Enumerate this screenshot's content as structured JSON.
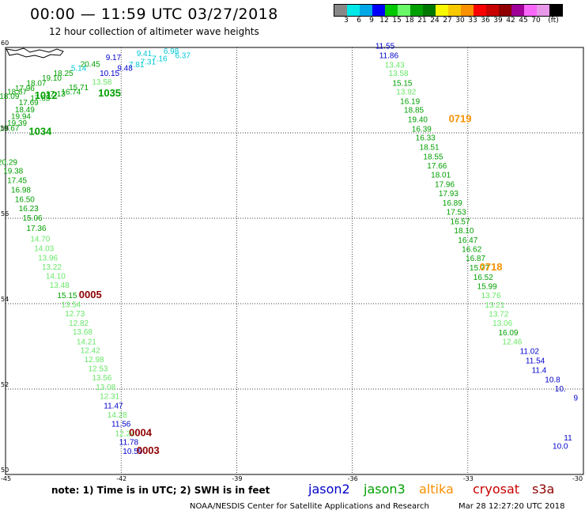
{
  "header": {
    "title": "00:00 — 11:59 UTC 03/27/2018",
    "subtitle": "12 hour collection of altimeter wave heights"
  },
  "colorbar": {
    "colors": [
      "#888888",
      "#00e8e8",
      "#00a8e8",
      "#0000f8",
      "#00c800",
      "#68f868",
      "#00a000",
      "#007800",
      "#f8f800",
      "#f8c800",
      "#f89000",
      "#f80000",
      "#c80000",
      "#900000",
      "#a00098",
      "#f868f8",
      "#e898e8",
      "#000000"
    ],
    "labels": [
      "3",
      "6",
      "9",
      "12",
      "15",
      "18",
      "21",
      "24",
      "27",
      "30",
      "33",
      "36",
      "39",
      "42",
      "45",
      "70",
      "(ft)"
    ]
  },
  "map": {
    "lon_ticks": [
      "-45",
      "-42",
      "-39",
      "-36",
      "-33",
      "-30"
    ],
    "lat_ticks": [
      "60",
      "58",
      "56",
      "54",
      "52",
      "50"
    ]
  },
  "footer": {
    "note": "note: 1) Time is in UTC; 2) SWH is in feet",
    "legend": [
      {
        "name": "jason2",
        "color": "#0000cc"
      },
      {
        "name": "jason3",
        "color": "#00a000"
      },
      {
        "name": "altika",
        "color": "#f89000"
      },
      {
        "name": "cryosat",
        "color": "#c80000"
      },
      {
        "name": "s3a",
        "color": "#900000"
      }
    ],
    "credit": "NOAA/NESDIS Center for Satellite Applications and Research",
    "timestamp": "Mar 28 12:27:20 UTC 2018"
  },
  "chart_data": {
    "type": "scatter",
    "xlim": [
      -45,
      -30
    ],
    "ylim": [
      50,
      60
    ],
    "grid": true,
    "obs": [
      {
        "lon": -42.2,
        "lat": 59.7,
        "v": "9.17",
        "c": "#0000cc"
      },
      {
        "lon": -41.4,
        "lat": 59.8,
        "v": "9.41",
        "c": "#00c8d8"
      },
      {
        "lon": -40.4,
        "lat": 59.75,
        "v": "6.37",
        "c": "#00c8d8"
      },
      {
        "lon": -40.7,
        "lat": 59.85,
        "v": "6.98",
        "c": "#00c8d8"
      },
      {
        "lon": -41.0,
        "lat": 59.68,
        "v": "7.16",
        "c": "#00c8d8"
      },
      {
        "lon": -41.3,
        "lat": 59.6,
        "v": "7.31",
        "c": "#00c8d8"
      },
      {
        "lon": -41.6,
        "lat": 59.54,
        "v": "7.81",
        "c": "#00c8d8"
      },
      {
        "lon": -41.9,
        "lat": 59.45,
        "v": "9.48",
        "c": "#0000cc"
      },
      {
        "lon": -42.3,
        "lat": 59.33,
        "v": "10.15",
        "c": "#0000cc"
      },
      {
        "lon": -42.5,
        "lat": 59.13,
        "v": "13.58",
        "c": "#68e868"
      },
      {
        "lon": -42.8,
        "lat": 59.55,
        "v": "20.45",
        "c": "#00a000"
      },
      {
        "lon": -43.1,
        "lat": 59.45,
        "v": "5.14",
        "c": "#00c8d8"
      },
      {
        "lon": -43.5,
        "lat": 59.33,
        "v": "18.25",
        "c": "#00a000"
      },
      {
        "lon": -43.8,
        "lat": 59.22,
        "v": "19.10",
        "c": "#00a000"
      },
      {
        "lon": -43.1,
        "lat": 59.0,
        "v": "15.71",
        "c": "#00a000"
      },
      {
        "lon": -43.3,
        "lat": 58.9,
        "v": "16.74",
        "c": "#00a000"
      },
      {
        "lon": -44.2,
        "lat": 59.1,
        "v": "18.07",
        "c": "#00a000"
      },
      {
        "lon": -44.5,
        "lat": 58.98,
        "v": "17.96",
        "c": "#00a000"
      },
      {
        "lon": -44.7,
        "lat": 58.9,
        "v": "18.67",
        "c": "#00a000"
      },
      {
        "lon": -43.7,
        "lat": 58.85,
        "v": "17.13",
        "c": "#00a000"
      },
      {
        "lon": -44.1,
        "lat": 58.75,
        "v": "17.65",
        "c": "#00a000"
      },
      {
        "lon": -44.4,
        "lat": 58.65,
        "v": "17.69",
        "c": "#00a000"
      },
      {
        "lon": -44.5,
        "lat": 58.48,
        "v": "18.49",
        "c": "#00a000"
      },
      {
        "lon": -44.6,
        "lat": 58.32,
        "v": "19.94",
        "c": "#00a000"
      },
      {
        "lon": -44.7,
        "lat": 58.17,
        "v": "19.39",
        "c": "#00a000"
      },
      {
        "lon": -44.9,
        "lat": 58.05,
        "v": "19.67",
        "c": "#00a000"
      },
      {
        "lon": -44.9,
        "lat": 58.8,
        "v": "18.09",
        "c": "#00a000"
      },
      {
        "lon": -44.95,
        "lat": 57.25,
        "v": "20.29",
        "c": "#00a000"
      },
      {
        "lon": -44.8,
        "lat": 57.05,
        "v": "19.38",
        "c": "#00a000"
      },
      {
        "lon": -44.7,
        "lat": 56.82,
        "v": "17.45",
        "c": "#00a000"
      },
      {
        "lon": -44.6,
        "lat": 56.6,
        "v": "16.98",
        "c": "#00a000"
      },
      {
        "lon": -44.5,
        "lat": 56.38,
        "v": "16.50",
        "c": "#00a000"
      },
      {
        "lon": -44.4,
        "lat": 56.17,
        "v": "16.23",
        "c": "#00a000"
      },
      {
        "lon": -44.3,
        "lat": 55.94,
        "v": "15.06",
        "c": "#00a000"
      },
      {
        "lon": -44.2,
        "lat": 55.7,
        "v": "17.36",
        "c": "#00a000"
      },
      {
        "lon": -44.1,
        "lat": 55.45,
        "v": "14.70",
        "c": "#68e868"
      },
      {
        "lon": -44.0,
        "lat": 55.23,
        "v": "14.03",
        "c": "#68e868"
      },
      {
        "lon": -43.9,
        "lat": 55.01,
        "v": "13.96",
        "c": "#68e868"
      },
      {
        "lon": -43.8,
        "lat": 54.8,
        "v": "13.22",
        "c": "#68e868"
      },
      {
        "lon": -43.7,
        "lat": 54.58,
        "v": "14.10",
        "c": "#68e868"
      },
      {
        "lon": -43.6,
        "lat": 54.37,
        "v": "13.48",
        "c": "#68e868"
      },
      {
        "lon": -43.4,
        "lat": 54.13,
        "v": "15.15",
        "c": "#00a000"
      },
      {
        "lon": -43.3,
        "lat": 53.92,
        "v": "13.54",
        "c": "#68e868"
      },
      {
        "lon": -43.2,
        "lat": 53.7,
        "v": "12.73",
        "c": "#68e868"
      },
      {
        "lon": -43.1,
        "lat": 53.48,
        "v": "12.82",
        "c": "#68e868"
      },
      {
        "lon": -43.0,
        "lat": 53.28,
        "v": "13.68",
        "c": "#68e868"
      },
      {
        "lon": -42.9,
        "lat": 53.05,
        "v": "14.21",
        "c": "#68e868"
      },
      {
        "lon": -42.8,
        "lat": 52.84,
        "v": "12.42",
        "c": "#68e868"
      },
      {
        "lon": -42.7,
        "lat": 52.63,
        "v": "12.98",
        "c": "#68e868"
      },
      {
        "lon": -42.6,
        "lat": 52.42,
        "v": "12.53",
        "c": "#68e868"
      },
      {
        "lon": -42.5,
        "lat": 52.2,
        "v": "13.56",
        "c": "#68e868"
      },
      {
        "lon": -42.4,
        "lat": 51.98,
        "v": "13.08",
        "c": "#68e868"
      },
      {
        "lon": -42.3,
        "lat": 51.77,
        "v": "12.31",
        "c": "#68e868"
      },
      {
        "lon": -42.2,
        "lat": 51.55,
        "v": "11.47",
        "c": "#0000cc"
      },
      {
        "lon": -42.1,
        "lat": 51.33,
        "v": "14.28",
        "c": "#68e868"
      },
      {
        "lon": -42.0,
        "lat": 51.12,
        "v": "11.56",
        "c": "#0000cc"
      },
      {
        "lon": -41.9,
        "lat": 50.9,
        "v": "12.24",
        "c": "#68e868"
      },
      {
        "lon": -41.8,
        "lat": 50.69,
        "v": "11.78",
        "c": "#0000cc"
      },
      {
        "lon": -41.7,
        "lat": 50.48,
        "v": "10.59",
        "c": "#0000cc"
      },
      {
        "lon": -35.15,
        "lat": 59.97,
        "v": "11.55",
        "c": "#0000cc"
      },
      {
        "lon": -35.05,
        "lat": 59.75,
        "v": "11.86",
        "c": "#0000cc"
      },
      {
        "lon": -34.9,
        "lat": 59.53,
        "v": "13.43",
        "c": "#68e868"
      },
      {
        "lon": -34.8,
        "lat": 59.33,
        "v": "13.58",
        "c": "#68e868"
      },
      {
        "lon": -34.7,
        "lat": 59.1,
        "v": "15.15",
        "c": "#00a000"
      },
      {
        "lon": -34.6,
        "lat": 58.9,
        "v": "13.92",
        "c": "#68e868"
      },
      {
        "lon": -34.5,
        "lat": 58.68,
        "v": "16.19",
        "c": "#00a000"
      },
      {
        "lon": -34.4,
        "lat": 58.47,
        "v": "18.85",
        "c": "#00a000"
      },
      {
        "lon": -34.3,
        "lat": 58.25,
        "v": "19.40",
        "c": "#00a000"
      },
      {
        "lon": -34.2,
        "lat": 58.03,
        "v": "16.39",
        "c": "#00a000"
      },
      {
        "lon": -34.1,
        "lat": 57.82,
        "v": "16.33",
        "c": "#00a000"
      },
      {
        "lon": -34.0,
        "lat": 57.6,
        "v": "18.51",
        "c": "#00a000"
      },
      {
        "lon": -33.9,
        "lat": 57.38,
        "v": "18.55",
        "c": "#00a000"
      },
      {
        "lon": -33.8,
        "lat": 57.17,
        "v": "17.66",
        "c": "#00a000"
      },
      {
        "lon": -33.7,
        "lat": 56.95,
        "v": "18.01",
        "c": "#00a000"
      },
      {
        "lon": -33.6,
        "lat": 56.73,
        "v": "17.96",
        "c": "#00a000"
      },
      {
        "lon": -33.5,
        "lat": 56.52,
        "v": "17.93",
        "c": "#00a000"
      },
      {
        "lon": -33.4,
        "lat": 56.3,
        "v": "16.89",
        "c": "#00a000"
      },
      {
        "lon": -33.3,
        "lat": 56.08,
        "v": "17.53",
        "c": "#00a000"
      },
      {
        "lon": -33.2,
        "lat": 55.86,
        "v": "16.57",
        "c": "#00a000"
      },
      {
        "lon": -33.1,
        "lat": 55.65,
        "v": "18.10",
        "c": "#00a000"
      },
      {
        "lon": -33.0,
        "lat": 55.43,
        "v": "16.47",
        "c": "#00a000"
      },
      {
        "lon": -32.9,
        "lat": 55.21,
        "v": "16.62",
        "c": "#00a000"
      },
      {
        "lon": -32.8,
        "lat": 55.0,
        "v": "16.87",
        "c": "#00a000"
      },
      {
        "lon": -32.7,
        "lat": 54.78,
        "v": "15.77",
        "c": "#00a000"
      },
      {
        "lon": -32.6,
        "lat": 54.56,
        "v": "16.52",
        "c": "#00a000"
      },
      {
        "lon": -32.5,
        "lat": 54.34,
        "v": "15.99",
        "c": "#00a000"
      },
      {
        "lon": -32.4,
        "lat": 54.13,
        "v": "13.76",
        "c": "#68e868"
      },
      {
        "lon": -32.3,
        "lat": 53.91,
        "v": "13.21",
        "c": "#68e868"
      },
      {
        "lon": -32.2,
        "lat": 53.69,
        "v": "13.72",
        "c": "#68e868"
      },
      {
        "lon": -32.1,
        "lat": 53.48,
        "v": "13.06",
        "c": "#68e868"
      },
      {
        "lon": -31.95,
        "lat": 53.26,
        "v": "16.09",
        "c": "#00a000"
      },
      {
        "lon": -31.85,
        "lat": 53.05,
        "v": "12.46",
        "c": "#68e868"
      },
      {
        "lon": -31.4,
        "lat": 52.82,
        "v": "11.02",
        "c": "#0000cc"
      },
      {
        "lon": -31.25,
        "lat": 52.6,
        "v": "11.54",
        "c": "#0000cc"
      },
      {
        "lon": -31.15,
        "lat": 52.38,
        "v": "11.4",
        "c": "#0000cc"
      },
      {
        "lon": -30.8,
        "lat": 52.16,
        "v": "10.8",
        "c": "#0000cc"
      },
      {
        "lon": -30.6,
        "lat": 51.94,
        "v": "10.",
        "c": "#0000cc"
      },
      {
        "lon": -30.2,
        "lat": 51.73,
        "v": "9",
        "c": "#0000cc"
      },
      {
        "lon": -30.4,
        "lat": 50.8,
        "v": "11",
        "c": "#0000cc"
      },
      {
        "lon": -30.6,
        "lat": 50.6,
        "v": "10.0",
        "c": "#0000cc"
      }
    ],
    "passes": [
      {
        "lon": -43.95,
        "lat": 58.8,
        "t": "1012",
        "c": "#00a000"
      },
      {
        "lon": -42.3,
        "lat": 58.85,
        "t": "1035",
        "c": "#00a000"
      },
      {
        "lon": -44.1,
        "lat": 57.95,
        "t": "1034",
        "c": "#00a000"
      },
      {
        "lon": -33.2,
        "lat": 58.25,
        "t": "0719",
        "c": "#f89000"
      },
      {
        "lon": -32.4,
        "lat": 54.78,
        "t": "0718",
        "c": "#f89000"
      },
      {
        "lon": -42.8,
        "lat": 54.13,
        "t": "0005",
        "c": "#900000"
      },
      {
        "lon": -41.5,
        "lat": 50.9,
        "t": "0004",
        "c": "#900000"
      },
      {
        "lon": -41.3,
        "lat": 50.48,
        "t": "0003",
        "c": "#900000"
      }
    ]
  }
}
